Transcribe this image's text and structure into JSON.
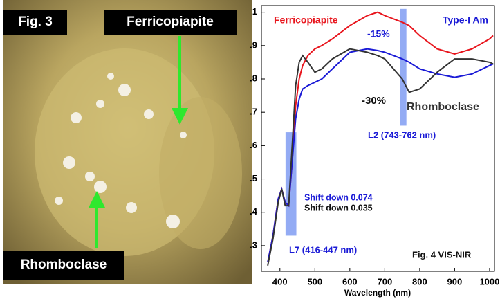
{
  "photo": {
    "label": "Fig. 3",
    "annotations": [
      "Ferricopiapite",
      "Rhomboclase"
    ]
  },
  "chart_data": {
    "type": "line",
    "x_label": "Wavelength (nm)",
    "x": [
      365,
      380,
      395,
      405,
      415,
      425,
      435,
      445,
      455,
      465,
      480,
      500,
      520,
      550,
      600,
      650,
      680,
      700,
      750,
      770,
      800,
      850,
      900,
      950,
      1000,
      1010
    ],
    "series": [
      {
        "name": "Ferricopiapite",
        "color": "#e8141c",
        "values": [
          0.25,
          0.33,
          0.44,
          0.47,
          0.43,
          0.42,
          0.55,
          0.72,
          0.8,
          0.84,
          0.87,
          0.89,
          0.9,
          0.92,
          0.96,
          0.99,
          1.0,
          0.99,
          0.97,
          0.96,
          0.93,
          0.89,
          0.875,
          0.89,
          0.92,
          0.93
        ]
      },
      {
        "name": "Type-I Am",
        "color": "#1a1ad6",
        "values": [
          0.25,
          0.33,
          0.44,
          0.47,
          0.43,
          0.42,
          0.55,
          0.68,
          0.74,
          0.77,
          0.78,
          0.79,
          0.8,
          0.83,
          0.88,
          0.89,
          0.885,
          0.88,
          0.86,
          0.85,
          0.83,
          0.815,
          0.805,
          0.815,
          0.84,
          0.845
        ]
      },
      {
        "name": "Rhomboclase",
        "color": "#333333",
        "values": [
          0.24,
          0.32,
          0.43,
          0.47,
          0.42,
          0.42,
          0.6,
          0.78,
          0.85,
          0.87,
          0.85,
          0.82,
          0.83,
          0.86,
          0.89,
          0.88,
          0.87,
          0.86,
          0.8,
          0.76,
          0.77,
          0.82,
          0.86,
          0.86,
          0.85,
          0.845
        ]
      }
    ],
    "xlim": [
      347,
      1014
    ],
    "xticks": [
      400,
      500,
      600,
      700,
      800,
      900,
      1000
    ],
    "ylim": [
      0.223,
      1.02
    ],
    "yticks": [
      {
        "value": 0.3,
        "label": ".3"
      },
      {
        "value": 0.4,
        "label": ".4"
      },
      {
        "value": 0.5,
        "label": ".5"
      },
      {
        "value": 0.6,
        "label": ".6"
      },
      {
        "value": 0.7,
        "label": ".7"
      },
      {
        "value": 0.8,
        "label": ".8"
      },
      {
        "value": 0.9,
        "label": ".9"
      },
      1
    ],
    "bands": [
      {
        "label": "L7 (416-447 nm)",
        "x": [
          416,
          447
        ],
        "y": [
          0.33,
          0.64
        ],
        "color": "#6f8ff0"
      },
      {
        "label": "L2 (743-762 nm)",
        "x": [
          743,
          762
        ],
        "y": [
          0.66,
          1.01
        ],
        "color": "#6f8ff0"
      }
    ],
    "annotations": [
      {
        "text": "-15%",
        "color": "#1a1ad6"
      },
      {
        "text": "-30%",
        "color": "#111111"
      },
      {
        "text": "Shift down 0.074",
        "color": "#1a1ad6"
      },
      {
        "text": "Shift down 0.035",
        "color": "#111111"
      },
      {
        "text": "Fig. 4 VIS-NIR",
        "color": "#111111"
      }
    ]
  }
}
